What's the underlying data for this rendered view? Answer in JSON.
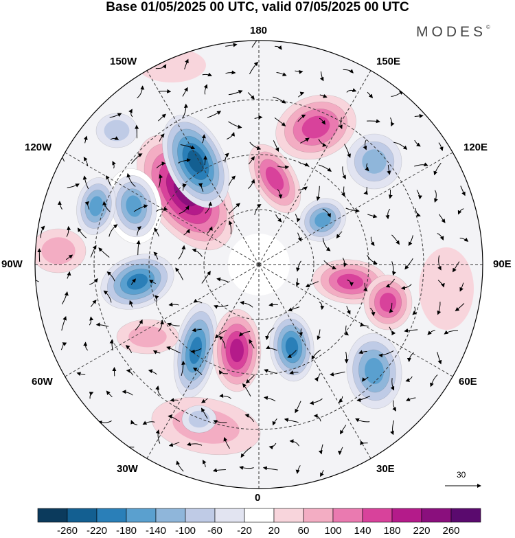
{
  "header": {
    "title": "Base 01/05/2025 00 UTC, valid 07/05/2025 00 UTC",
    "brand": "MODES",
    "brand_mark": "©"
  },
  "map": {
    "projection": "north-polar-stereographic",
    "longitude_labels": {
      "top": "180",
      "top_left": "150W",
      "top_right": "150E",
      "upper_left": "120W",
      "upper_right": "120E",
      "left": "90W",
      "right": "90E",
      "lower_left": "60W",
      "lower_right": "60E",
      "bottom_left": "30W",
      "bottom_right": "30E",
      "bottom": "0"
    },
    "reference_vector": "30"
  },
  "colorbar": {
    "ticks": [
      "-260",
      "-220",
      "-180",
      "-140",
      "-100",
      "-60",
      "-20",
      "20",
      "60",
      "100",
      "140",
      "180",
      "220",
      "260"
    ],
    "colors": [
      "#0b3a5c",
      "#135f91",
      "#2a7fb8",
      "#5aa0cf",
      "#8fb6da",
      "#bfcbe6",
      "#e2e4f1",
      "#ffffff",
      "#f8d5dc",
      "#f3adc3",
      "#ea7ab0",
      "#d8429b",
      "#b41b8a",
      "#8a0f7d",
      "#5a0a6e"
    ]
  }
}
